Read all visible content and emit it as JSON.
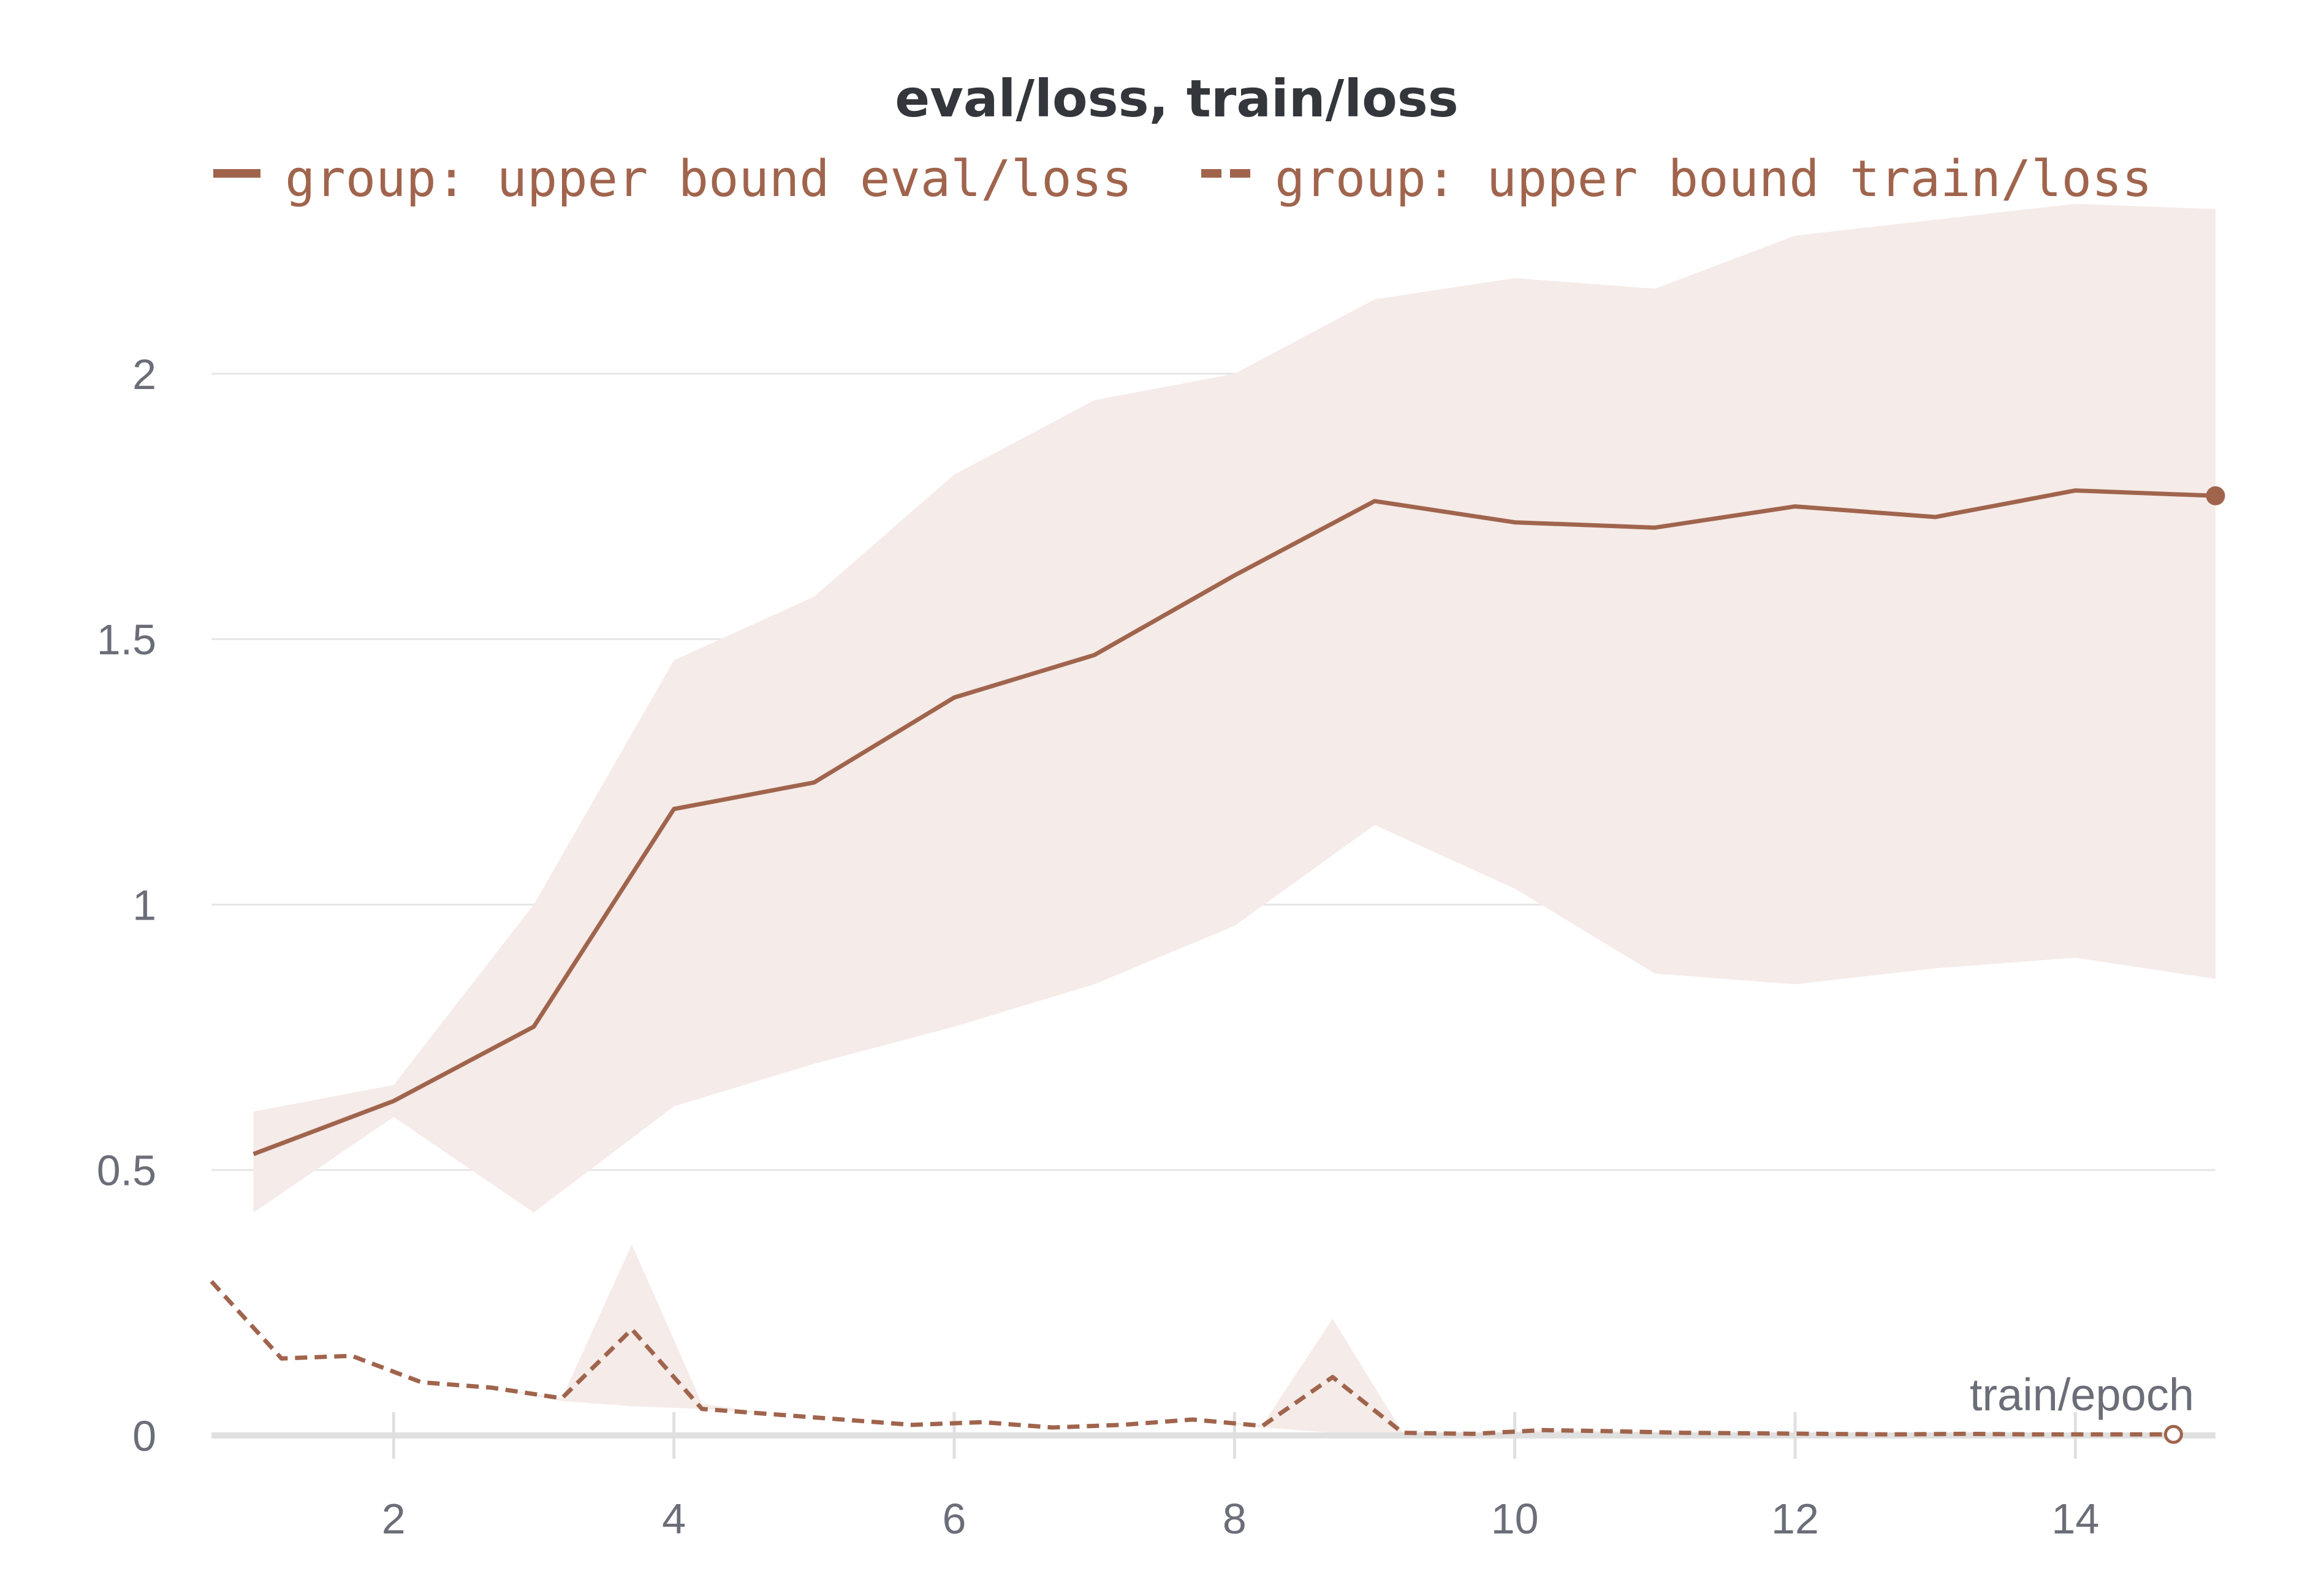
{
  "chart_data": {
    "type": "line",
    "title": "eval/loss, train/loss",
    "xlabel": "train/epoch",
    "ylabel": "",
    "xlim": [
      0.7,
      15.0
    ],
    "ylim": [
      0,
      2.3
    ],
    "x_ticks": [
      2,
      4,
      6,
      8,
      10,
      12,
      14
    ],
    "y_ticks": [
      0,
      0.5,
      1,
      1.5,
      2
    ],
    "x_tick_labels": [
      "2",
      "4",
      "6",
      "8",
      "10",
      "12",
      "14"
    ],
    "y_tick_labels": [
      "0",
      "0.5",
      "1",
      "1.5",
      "2"
    ],
    "grid": true,
    "legend_position": "top",
    "series": [
      {
        "name": "group: upper bound eval/loss",
        "style": "solid",
        "x": [
          1,
          2,
          3,
          4,
          5,
          6,
          7,
          8,
          9,
          10,
          11,
          12,
          13,
          14,
          15
        ],
        "values": [
          0.53,
          0.63,
          0.77,
          1.18,
          1.23,
          1.39,
          1.47,
          1.62,
          1.76,
          1.72,
          1.71,
          1.75,
          1.73,
          1.78,
          1.77
        ],
        "band_upper": [
          0.61,
          0.66,
          1.0,
          1.46,
          1.58,
          1.81,
          1.95,
          2.0,
          2.14,
          2.18,
          2.16,
          2.26,
          2.29,
          2.32,
          2.31
        ],
        "band_lower": [
          0.42,
          0.6,
          0.42,
          0.62,
          0.7,
          0.77,
          0.85,
          0.96,
          1.15,
          1.03,
          0.87,
          0.85,
          0.88,
          0.9,
          0.86
        ]
      },
      {
        "name": "group: upper bound train/loss",
        "style": "dashed",
        "x": [
          0.7,
          1.2,
          1.7,
          2.2,
          2.7,
          3.2,
          3.7,
          4.2,
          4.7,
          5.2,
          5.7,
          6.2,
          6.7,
          7.2,
          7.7,
          8.2,
          8.7,
          9.2,
          9.7,
          10.2,
          10.7,
          11.2,
          11.7,
          12.2,
          12.7,
          13.2,
          13.7,
          14.2,
          14.7
        ],
        "values": [
          0.29,
          0.145,
          0.15,
          0.1,
          0.09,
          0.07,
          0.2,
          0.05,
          0.04,
          0.03,
          0.02,
          0.025,
          0.015,
          0.02,
          0.03,
          0.018,
          0.11,
          0.005,
          0.003,
          0.01,
          0.008,
          0.005,
          0.004,
          0.003,
          0.002,
          0.003,
          0.002,
          0.002,
          0.002
        ],
        "band_upper": [
          0.29,
          0.145,
          0.15,
          0.1,
          0.09,
          0.07,
          0.36,
          0.06,
          0.04,
          0.03,
          0.02,
          0.025,
          0.015,
          0.02,
          0.03,
          0.02,
          0.22,
          0.005,
          0.003,
          0.01,
          0.008,
          0.005,
          0.004,
          0.003,
          0.002,
          0.003,
          0.002,
          0.002,
          0.002
        ],
        "band_lower": [
          0.29,
          0.145,
          0.15,
          0.1,
          0.09,
          0.065,
          0.055,
          0.05,
          0.04,
          0.03,
          0.02,
          0.025,
          0.015,
          0.02,
          0.03,
          0.015,
          0.005,
          0.002,
          0.002,
          0.005,
          0.005,
          0.003,
          0.002,
          0.002,
          0.001,
          0.001,
          0.001,
          0.001,
          0.001
        ]
      }
    ],
    "colors": {
      "line": "#a0644d",
      "band": "#f5ebe8",
      "grid": "#e6e6e6",
      "axis": "#e0e0e0",
      "tick_text": "#6b6e78",
      "title": "#33363b"
    }
  }
}
